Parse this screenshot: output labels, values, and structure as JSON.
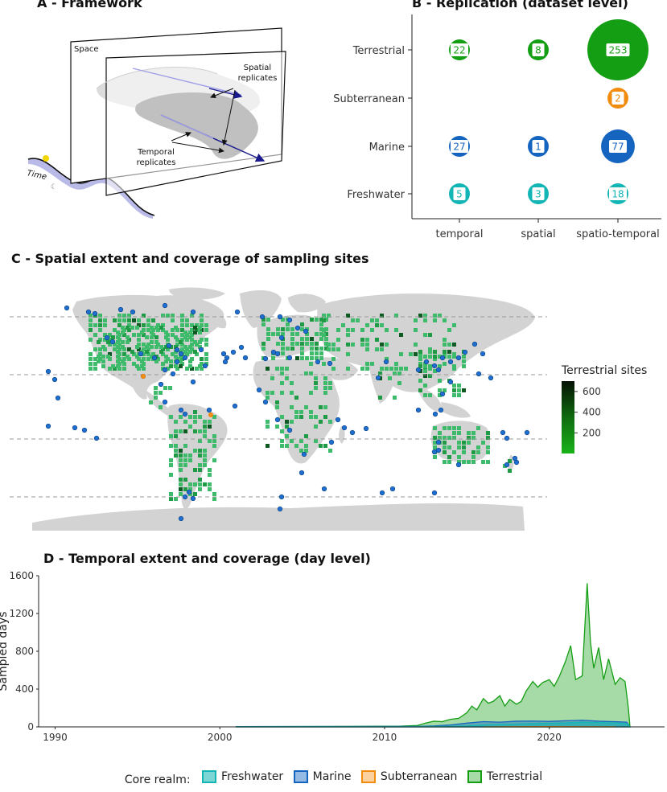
{
  "panels": {
    "a_title": "A - Framework",
    "b_title": "B - Replication (dataset level)",
    "c_title": "C - Spatial extent and coverage of sampling sites",
    "d_title": "D - Temporal extent and coverage (day level)"
  },
  "framework": {
    "space_label": "Space",
    "time_label": "Time",
    "spatial_label_1": "Spatial",
    "spatial_label_2": "replicates",
    "temporal_label_1": "Temporal",
    "temporal_label_2": "replicates"
  },
  "colors": {
    "freshwater": "#13b5b5",
    "marine": "#1565c0",
    "subterranean": "#f28c0f",
    "terrestrial": "#149e14",
    "land": "#d3d3d3"
  },
  "chart_data": [
    {
      "type": "scatter",
      "subtype": "bubble",
      "title": "B - Replication (dataset level)",
      "x_categories": [
        "temporal",
        "spatial",
        "spatio-temporal"
      ],
      "y_categories": [
        "Terrestrial",
        "Subterranean",
        "Marine",
        "Freshwater"
      ],
      "points": [
        {
          "realm": "Terrestrial",
          "replication": "temporal",
          "value": 22
        },
        {
          "realm": "Terrestrial",
          "replication": "spatial",
          "value": 8
        },
        {
          "realm": "Terrestrial",
          "replication": "spatio-temporal",
          "value": 253
        },
        {
          "realm": "Subterranean",
          "replication": "spatio-temporal",
          "value": 2
        },
        {
          "realm": "Marine",
          "replication": "temporal",
          "value": 27
        },
        {
          "realm": "Marine",
          "replication": "spatial",
          "value": 1
        },
        {
          "realm": "Marine",
          "replication": "spatio-temporal",
          "value": 77
        },
        {
          "realm": "Freshwater",
          "replication": "temporal",
          "value": 5
        },
        {
          "realm": "Freshwater",
          "replication": "spatial",
          "value": 3
        },
        {
          "realm": "Freshwater",
          "replication": "spatio-temporal",
          "value": 18
        }
      ]
    },
    {
      "type": "heatmap",
      "subtype": "map",
      "title": "C - Spatial extent and coverage of sampling sites",
      "legend_title": "Terrestrial sites",
      "legend_ticks": [
        200,
        400,
        600
      ],
      "legend_range": [
        1,
        700
      ],
      "reference_lines": [
        "dashed"
      ]
    },
    {
      "type": "area",
      "title": "D - Temporal extent and coverage (day level)",
      "xlabel": "",
      "ylabel": "Sampled days",
      "xlim": [
        1989,
        2027
      ],
      "ylim": [
        0,
        1600
      ],
      "xticks": [
        1990,
        2000,
        2010,
        2020
      ],
      "yticks": [
        0,
        400,
        800,
        1200,
        1600
      ],
      "legend_title": "Core realm:",
      "series": [
        {
          "name": "Freshwater",
          "x": [
            2001,
            2008,
            2012,
            2014,
            2015,
            2016,
            2017,
            2018,
            2019,
            2020,
            2021,
            2022,
            2023,
            2024,
            2024.7,
            2024.9
          ],
          "y": [
            2,
            3,
            4,
            6,
            10,
            20,
            25,
            30,
            35,
            38,
            42,
            50,
            45,
            42,
            35,
            0
          ]
        },
        {
          "name": "Marine",
          "x": [
            2001,
            2008,
            2012,
            2013,
            2014,
            2015,
            2016,
            2017,
            2018,
            2019,
            2020,
            2021,
            2022,
            2023,
            2024,
            2024.7,
            2024.9
          ],
          "y": [
            3,
            4,
            5,
            10,
            20,
            40,
            55,
            50,
            60,
            62,
            58,
            65,
            70,
            60,
            55,
            50,
            0
          ]
        },
        {
          "name": "Subterranean",
          "x": [
            2016,
            2018,
            2020,
            2022,
            2024
          ],
          "y": [
            0,
            2,
            3,
            2,
            1
          ]
        },
        {
          "name": "Terrestrial",
          "x": [
            2001,
            2008,
            2011,
            2012,
            2012.5,
            2013,
            2013.5,
            2014,
            2014.5,
            2015,
            2015.3,
            2015.6,
            2016,
            2016.3,
            2016.6,
            2017,
            2017.3,
            2017.6,
            2018,
            2018.3,
            2018.6,
            2019,
            2019.3,
            2019.6,
            2020,
            2020.3,
            2020.6,
            2021,
            2021.3,
            2021.6,
            2022,
            2022.3,
            2022.5,
            2022.7,
            2023,
            2023.3,
            2023.6,
            2024,
            2024.3,
            2024.6,
            2024.8,
            2024.9
          ],
          "y": [
            3,
            5,
            8,
            15,
            40,
            60,
            55,
            80,
            90,
            150,
            220,
            180,
            300,
            250,
            270,
            330,
            220,
            290,
            240,
            270,
            380,
            480,
            420,
            470,
            500,
            430,
            530,
            700,
            860,
            500,
            540,
            1520,
            900,
            620,
            840,
            500,
            720,
            450,
            520,
            480,
            200,
            0
          ]
        }
      ]
    }
  ],
  "legend_d": {
    "title": "Core realm:",
    "items": [
      "Freshwater",
      "Marine",
      "Subterranean",
      "Terrestrial"
    ]
  }
}
